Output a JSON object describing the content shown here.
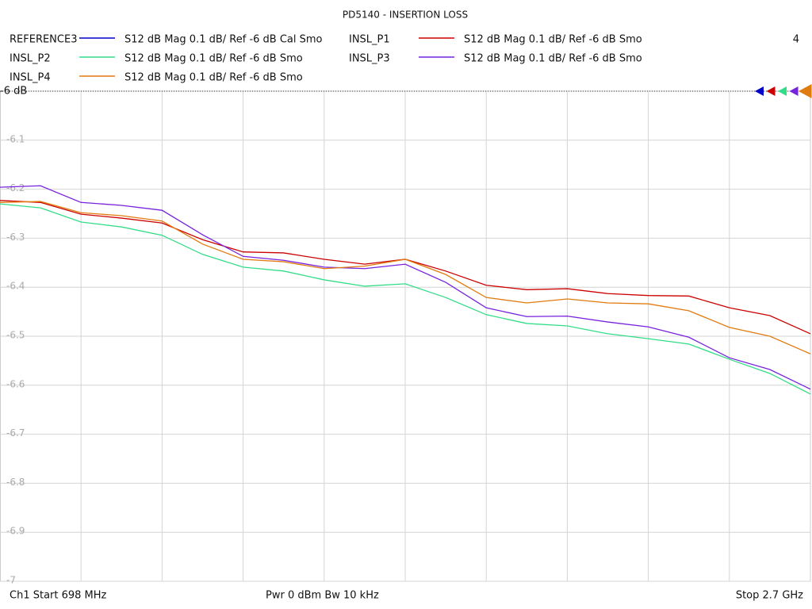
{
  "chart_data": {
    "type": "line",
    "title": "PD5140 - INSERTION LOSS",
    "active_trace": 4,
    "footer": {
      "start": "Ch1  Start  698 MHz",
      "power": "Pwr  0 dBm  Bw  10 kHz",
      "stop": "Stop  2.7 GHz"
    },
    "x": [
      698,
      798.1,
      898.2,
      998.3,
      1098.4,
      1198.5,
      1298.6,
      1398.7,
      1498.8,
      1598.9,
      1699,
      1799.1,
      1899.2,
      1999.3,
      2099.4,
      2199.5,
      2299.6,
      2399.7,
      2499.8,
      2599.9,
      2700
    ],
    "xlim": [
      698,
      2700
    ],
    "xticks": [
      898.2,
      1098.4,
      1298.6,
      1498.8,
      1699,
      1899.2,
      2099.4,
      2299.6,
      2499.8
    ],
    "ylim": [
      -7,
      -6
    ],
    "yticks": [
      {
        "value": -6,
        "label": "-6 dB"
      },
      -6.1,
      -6.2,
      -6.3,
      -6.4,
      -6.5,
      -6.6,
      -6.7,
      -6.8,
      -6.9,
      -7
    ],
    "grid": true,
    "series": [
      {
        "name": "REFERENCE3",
        "description": "S12  dB Mag  0.1 dB/ Ref -6 dB  Cal Smo",
        "color": "#0000cc",
        "values": [
          null,
          null,
          null,
          null,
          null,
          null,
          null,
          null,
          null,
          null,
          null,
          null,
          null,
          null,
          null,
          null,
          null,
          null,
          null,
          null,
          null
        ]
      },
      {
        "name": "INSL_P1",
        "description": "S12  dB Mag  0.1 dB/ Ref -6 dB  Smo",
        "color": "#cc0000",
        "values": [
          -6.223,
          -6.227,
          -6.251,
          -6.259,
          -6.269,
          -6.303,
          -6.328,
          -6.33,
          -6.343,
          -6.353,
          -6.343,
          -6.367,
          -6.396,
          -6.405,
          -6.403,
          -6.413,
          -6.417,
          -6.418,
          -6.442,
          -6.458,
          -6.495
        ]
      },
      {
        "name": "INSL_P2",
        "description": "S12  dB Mag  0.1 dB/ Ref -6 dB  Smo",
        "color": "#33dd88",
        "values": [
          -6.23,
          -6.238,
          -6.267,
          -6.277,
          -6.294,
          -6.333,
          -6.359,
          -6.367,
          -6.385,
          -6.398,
          -6.393,
          -6.421,
          -6.456,
          -6.474,
          -6.479,
          -6.495,
          -6.505,
          -6.516,
          -6.547,
          -6.576,
          -6.618
        ]
      },
      {
        "name": "INSL_P3",
        "description": "S12  dB Mag  0.1 dB/ Ref -6 dB  Smo",
        "color": "#7722dd",
        "values": [
          -6.196,
          -6.193,
          -6.227,
          -6.233,
          -6.243,
          -6.293,
          -6.337,
          -6.345,
          -6.359,
          -6.362,
          -6.353,
          -6.39,
          -6.442,
          -6.46,
          -6.459,
          -6.471,
          -6.481,
          -6.502,
          -6.544,
          -6.568,
          -6.608
        ]
      },
      {
        "name": "INSL_P4",
        "description": "S12  dB Mag  0.1 dB/ Ref -6 dB  Smo",
        "color": "#e07b10",
        "values": [
          -6.227,
          -6.225,
          -6.248,
          -6.254,
          -6.265,
          -6.312,
          -6.343,
          -6.348,
          -6.362,
          -6.357,
          -6.343,
          -6.374,
          -6.421,
          -6.432,
          -6.424,
          -6.432,
          -6.434,
          -6.448,
          -6.482,
          -6.5,
          -6.536
        ]
      }
    ]
  }
}
